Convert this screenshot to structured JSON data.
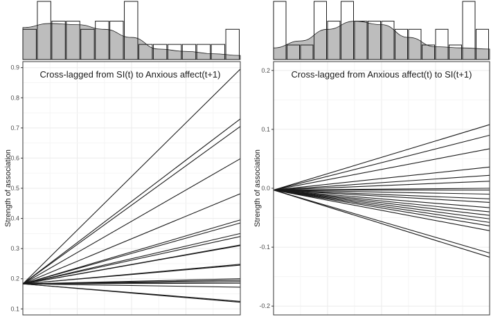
{
  "chart_data": [
    {
      "type": "line",
      "title": "Cross-lagged from SI(t) to Anxious affect(t+1)",
      "xlabel": "",
      "ylabel": "Strength of association",
      "ylim": [
        0.08,
        0.92
      ],
      "yticks": [
        "0.1",
        "0.2",
        "0.3",
        "0.4",
        "0.5",
        "0.6",
        "0.7",
        "0.8",
        "0.9"
      ],
      "grid": true,
      "origin": 0.183,
      "line_end_values": [
        0.895,
        0.73,
        0.705,
        0.598,
        0.482,
        0.395,
        0.385,
        0.35,
        0.34,
        0.312,
        0.31,
        0.248,
        0.245,
        0.2,
        0.195,
        0.19,
        0.185,
        0.172,
        0.125,
        0.122
      ],
      "marginal_histogram": {
        "bars": [
          0.52,
          1.0,
          0.66,
          0.66,
          0.52,
          0.66,
          0.66,
          1.0,
          0.26,
          0.26,
          0.26,
          0.26,
          0.26,
          0.26,
          0.52
        ],
        "density": [
          0.55,
          0.62,
          0.6,
          0.52,
          0.38,
          0.18,
          0.14,
          0.1,
          0.07
        ]
      }
    },
    {
      "type": "line",
      "title": "Cross-lagged from Anxious affect(t) to SI(t+1)",
      "xlabel": "",
      "ylabel": "Strength of association",
      "ylim": [
        -0.215,
        0.215
      ],
      "yticks": [
        "-0.2",
        "-0.1",
        "0.0",
        "0.1",
        "0.2"
      ],
      "grid": true,
      "origin": -0.003,
      "line_end_values": [
        0.108,
        0.09,
        0.067,
        0.036,
        0.022,
        0.012,
        0.0,
        -0.003,
        -0.01,
        -0.018,
        -0.024,
        -0.033,
        -0.04,
        -0.046,
        -0.052,
        -0.058,
        -0.064,
        -0.072,
        -0.11,
        -0.117
      ],
      "marginal_histogram": {
        "bars": [
          1.0,
          0.25,
          0.25,
          1.0,
          0.66,
          1.0,
          0.66,
          0.66,
          0.66,
          0.52,
          0.52,
          0.25,
          0.52,
          0.25,
          1.0,
          0.52
        ],
        "density": [
          0.2,
          0.32,
          0.52,
          0.66,
          0.6,
          0.38,
          0.22,
          0.2,
          0.18
        ]
      }
    }
  ],
  "colors": {
    "panel_background": "#ffffff",
    "panel_border": "#333333",
    "grid_major": "#ebebeb",
    "grid_minor": "#f5f5f5",
    "line": "#1a1a1a",
    "density_fill": "#bdbdbd",
    "histogram_outline": "#1a1a1a"
  }
}
